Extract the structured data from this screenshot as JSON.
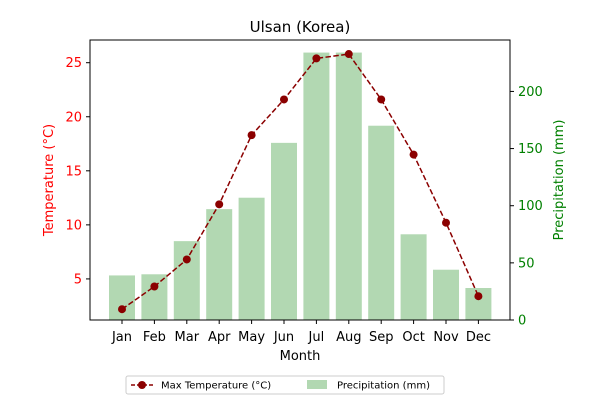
{
  "chart_data": {
    "type": "bar+line",
    "title": "Ulsan (Korea)",
    "xlabel": "Month",
    "categories": [
      "Jan",
      "Feb",
      "Mar",
      "Apr",
      "May",
      "Jun",
      "Jul",
      "Aug",
      "Sep",
      "Oct",
      "Nov",
      "Dec"
    ],
    "left_axis": {
      "label": "Temperature (°C)",
      "color": "#ff0000",
      "range": [
        1.2,
        27.1
      ],
      "ticks": [
        5,
        10,
        15,
        20,
        25
      ]
    },
    "right_axis": {
      "label": "Precipitation (mm)",
      "color": "#008000",
      "range": [
        0,
        245
      ],
      "ticks": [
        0,
        50,
        100,
        150,
        200
      ]
    },
    "series": [
      {
        "name": "Max Temperature (°C)",
        "type": "line",
        "axis": "left",
        "color": "#8b0000",
        "style": "dashed",
        "marker": "circle",
        "values": [
          2.2,
          4.3,
          6.8,
          11.9,
          18.3,
          21.6,
          25.4,
          25.8,
          21.6,
          16.5,
          10.2,
          3.4
        ]
      },
      {
        "name": "Precipitation (mm)",
        "type": "bar",
        "axis": "right",
        "color": "#b2d8b2",
        "values": [
          39,
          40,
          69,
          97,
          107,
          155,
          234,
          234,
          170,
          75,
          44,
          28
        ]
      }
    ],
    "legend": {
      "placement": "bottom-center",
      "ncol": 2
    },
    "grid": false
  }
}
